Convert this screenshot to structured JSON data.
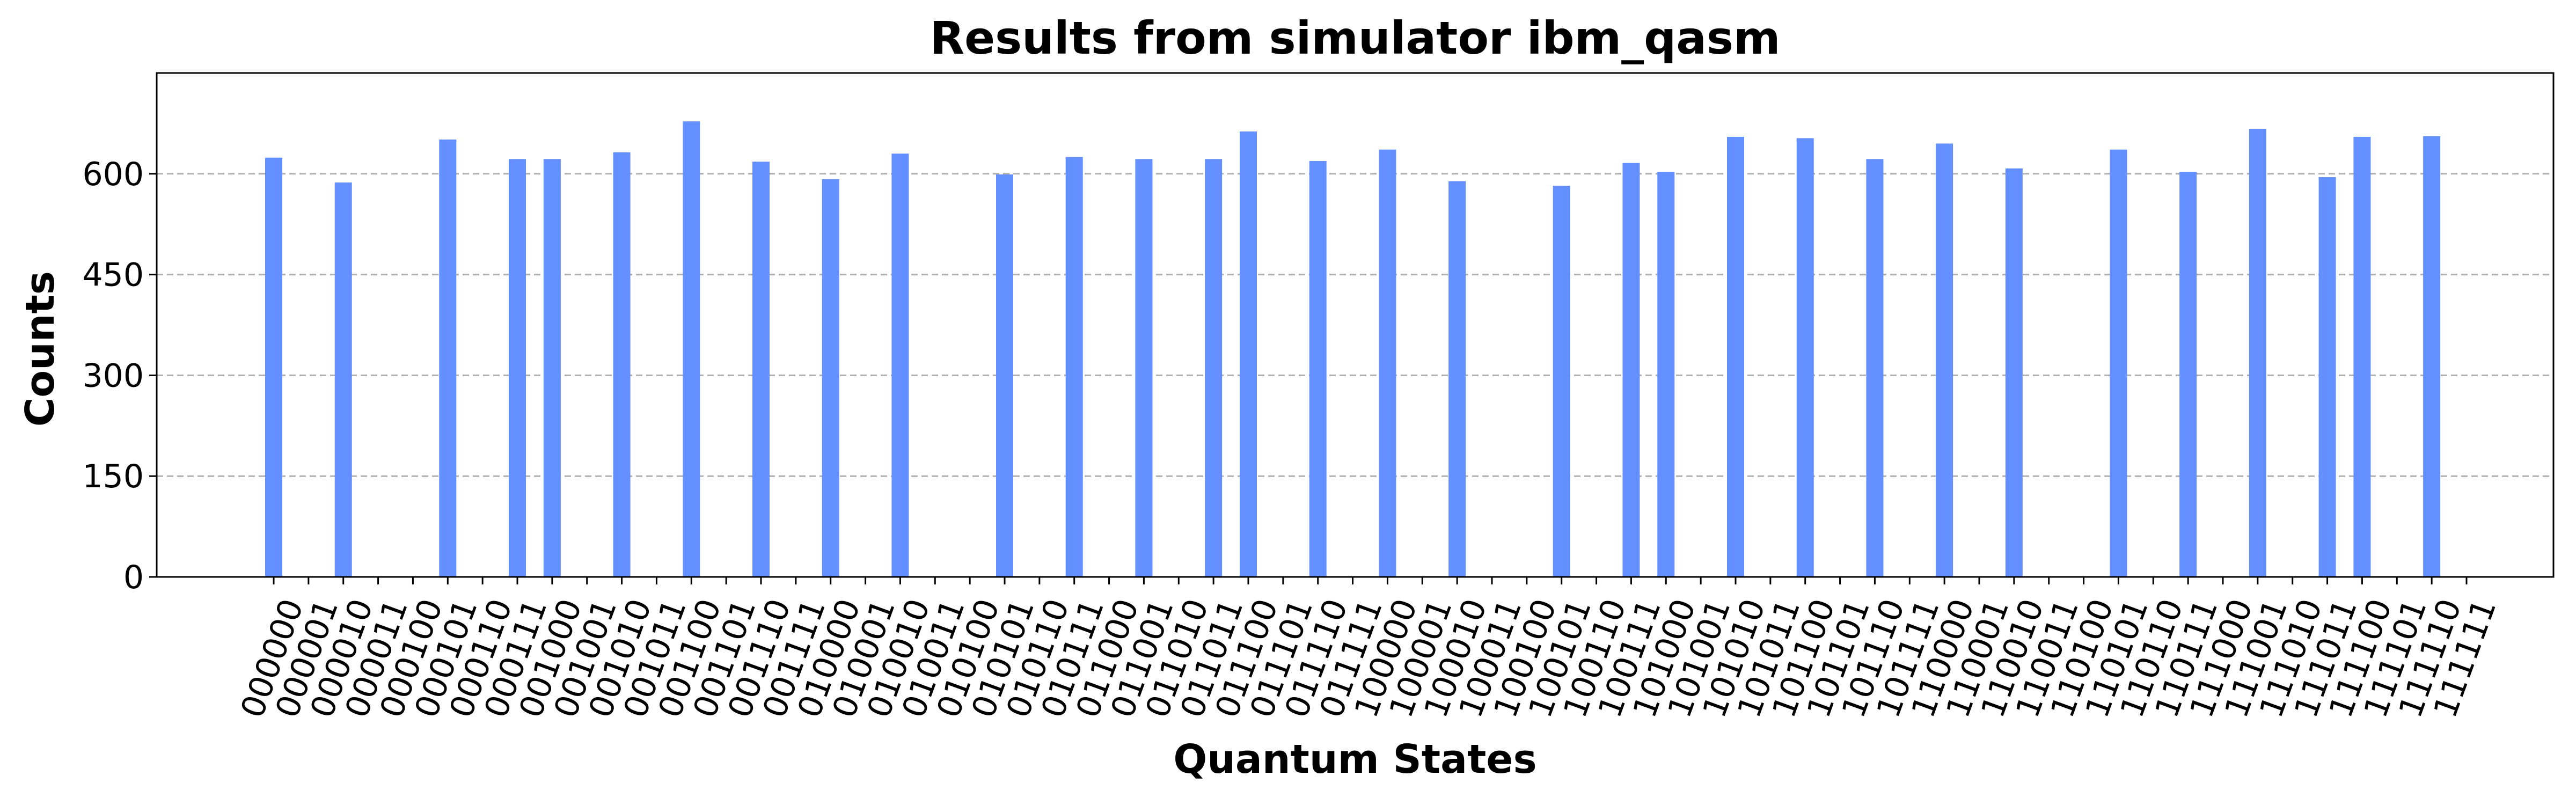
{
  "chart_data": {
    "type": "bar",
    "title": "Results from simulator ibm_qasm",
    "xlabel": "Quantum States",
    "ylabel": "Counts",
    "ylim": [
      0,
      750
    ],
    "yticks": [
      0,
      150,
      300,
      450,
      600
    ],
    "grid": "y",
    "bar_color": "#648fff",
    "categories": [
      "000000",
      "000001",
      "000010",
      "000011",
      "000100",
      "000101",
      "000110",
      "000111",
      "001000",
      "001001",
      "001010",
      "001011",
      "001100",
      "001101",
      "001110",
      "001111",
      "010000",
      "010001",
      "010010",
      "010011",
      "010100",
      "010101",
      "010110",
      "010111",
      "011000",
      "011001",
      "011010",
      "011011",
      "011100",
      "011101",
      "011110",
      "011111",
      "100000",
      "100001",
      "100010",
      "100011",
      "100100",
      "100101",
      "100110",
      "100111",
      "101000",
      "101001",
      "101010",
      "101011",
      "101100",
      "101101",
      "101110",
      "101111",
      "110000",
      "110001",
      "110010",
      "110011",
      "110100",
      "110101",
      "110110",
      "110111",
      "111000",
      "111001",
      "111010",
      "111011",
      "111100",
      "111101",
      "111110",
      "111111"
    ],
    "values": [
      624,
      0,
      587,
      0,
      0,
      651,
      0,
      622,
      622,
      0,
      632,
      0,
      678,
      0,
      618,
      0,
      592,
      0,
      630,
      0,
      0,
      599,
      0,
      625,
      0,
      622,
      0,
      622,
      663,
      0,
      619,
      0,
      636,
      0,
      589,
      0,
      0,
      582,
      0,
      616,
      603,
      0,
      655,
      0,
      653,
      0,
      622,
      0,
      645,
      0,
      608,
      0,
      0,
      636,
      0,
      603,
      0,
      667,
      0,
      595,
      655,
      0,
      656,
      0
    ]
  }
}
